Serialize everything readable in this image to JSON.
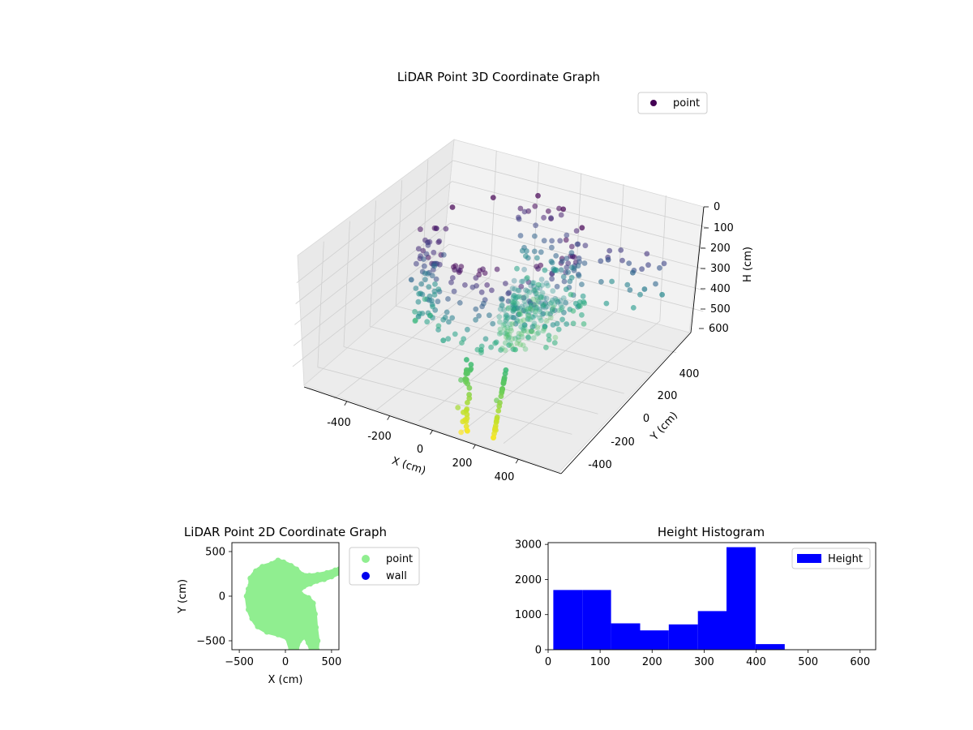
{
  "figure": {
    "charts_3d_title": "LiDAR Point 3D Coordinate Graph",
    "charts_2d_title": "LiDAR Point 2D Coordinate Graph",
    "histogram_title": "Height Histogram"
  },
  "chart_data": [
    {
      "type": "scatter",
      "projection": "3d",
      "title": "LiDAR Point 3D Coordinate Graph",
      "xlabel": "X (cm)",
      "ylabel": "Y (cm)",
      "zlabel": "H (cm)",
      "xlim": [
        -600,
        600
      ],
      "ylim": [
        -600,
        600
      ],
      "zlim": [
        600,
        0
      ],
      "z_inverted": true,
      "xticks": [
        "-400",
        "-200",
        "0",
        "200",
        "400"
      ],
      "yticks": [
        "-400",
        "-200",
        "0",
        "200",
        "400"
      ],
      "zticks": [
        "0",
        "100",
        "200",
        "300",
        "400",
        "500",
        "600"
      ],
      "legend": {
        "entries": [
          "point"
        ],
        "placement": "upper-right"
      },
      "colormap": "viridis",
      "grid": true,
      "series": [
        {
          "name": "point",
          "color_by": "height",
          "structure": "curved wall ring of points (~300 cm radius) spanning heights 0–400 cm, sparse trails descending to ~600 cm",
          "sample_points": [
            {
              "x": -300,
              "y": 100,
              "h": 0
            },
            {
              "x": -200,
              "y": 250,
              "h": 0
            },
            {
              "x": -50,
              "y": 350,
              "h": 0
            },
            {
              "x": 100,
              "y": 300,
              "h": 0
            },
            {
              "x": 250,
              "y": 200,
              "h": 0
            },
            {
              "x": 300,
              "y": 50,
              "h": 50
            },
            {
              "x": -320,
              "y": -50,
              "h": 100
            },
            {
              "x": -300,
              "y": -200,
              "h": 200
            },
            {
              "x": -200,
              "y": -300,
              "h": 300
            },
            {
              "x": -50,
              "y": -350,
              "h": 350
            },
            {
              "x": 100,
              "y": -300,
              "h": 380
            },
            {
              "x": 200,
              "y": -200,
              "h": 400
            },
            {
              "x": 350,
              "y": 250,
              "h": 150
            },
            {
              "x": 450,
              "y": 280,
              "h": 200
            },
            {
              "x": 520,
              "y": 260,
              "h": 250
            },
            {
              "x": 580,
              "y": 300,
              "h": 280
            },
            {
              "x": 100,
              "y": -450,
              "h": 450
            },
            {
              "x": 150,
              "y": -550,
              "h": 520
            },
            {
              "x": 200,
              "y": -600,
              "h": 600
            },
            {
              "x": 300,
              "y": -500,
              "h": 470
            },
            {
              "x": 350,
              "y": -580,
              "h": 560
            }
          ]
        }
      ]
    },
    {
      "type": "scatter",
      "title": "LiDAR Point 2D Coordinate Graph",
      "xlabel": "X (cm)",
      "ylabel": "Y (cm)",
      "xlim": [
        -580,
        580
      ],
      "ylim": [
        -600,
        600
      ],
      "xticks": [
        "−500",
        "0",
        "500"
      ],
      "yticks": [
        "500",
        "0",
        "−500"
      ],
      "xtick_values": [
        -500,
        0,
        500
      ],
      "ytick_values": [
        500,
        0,
        -500
      ],
      "legend": {
        "entries": [
          "point",
          "wall"
        ],
        "placement": "outside-right"
      },
      "series": [
        {
          "name": "point",
          "color": "#90ee90",
          "outline": [
            [
              -380,
              120
            ],
            [
              -380,
              200
            ],
            [
              -320,
              280
            ],
            [
              -250,
              330
            ],
            [
              -150,
              360
            ],
            [
              -80,
              400
            ],
            [
              -20,
              380
            ],
            [
              60,
              340
            ],
            [
              120,
              300
            ],
            [
              180,
              240
            ],
            [
              260,
              230
            ],
            [
              350,
              240
            ],
            [
              450,
              260
            ],
            [
              540,
              290
            ],
            [
              580,
              300
            ],
            [
              580,
              260
            ],
            [
              500,
              220
            ],
            [
              420,
              190
            ],
            [
              340,
              170
            ],
            [
              270,
              140
            ],
            [
              200,
              110
            ],
            [
              150,
              60
            ],
            [
              170,
              20
            ],
            [
              250,
              -20
            ],
            [
              300,
              -80
            ],
            [
              320,
              -200
            ],
            [
              330,
              -350
            ],
            [
              350,
              -500
            ],
            [
              340,
              -600
            ],
            [
              280,
              -600
            ],
            [
              250,
              -520
            ],
            [
              210,
              -450
            ],
            [
              150,
              -500
            ],
            [
              120,
              -600
            ],
            [
              60,
              -600
            ],
            [
              20,
              -470
            ],
            [
              -80,
              -430
            ],
            [
              -200,
              -400
            ],
            [
              -300,
              -340
            ],
            [
              -360,
              -250
            ],
            [
              -400,
              -150
            ],
            [
              -420,
              0
            ],
            [
              -400,
              80
            ]
          ]
        },
        {
          "name": "wall",
          "color": "#0000ee",
          "points": []
        }
      ]
    },
    {
      "type": "bar",
      "subtype": "histogram",
      "title": "Height Histogram",
      "xlim": [
        0,
        630
      ],
      "ylim": [
        0,
        3050
      ],
      "xticks": [
        "0",
        "100",
        "200",
        "300",
        "400",
        "500",
        "600"
      ],
      "xtick_values": [
        0,
        100,
        200,
        300,
        400,
        500,
        600
      ],
      "yticks": [
        "0",
        "1000",
        "2000",
        "3000"
      ],
      "ytick_values": [
        0,
        1000,
        2000,
        3000
      ],
      "legend": {
        "entries": [
          "Height"
        ],
        "placement": "upper-right"
      },
      "series": [
        {
          "name": "Height",
          "color": "#0000ff",
          "bins": [
            {
              "x0": 10,
              "x1": 66,
              "count": 1700
            },
            {
              "x0": 66,
              "x1": 121,
              "count": 1700
            },
            {
              "x0": 121,
              "x1": 177,
              "count": 750
            },
            {
              "x0": 177,
              "x1": 232,
              "count": 550
            },
            {
              "x0": 232,
              "x1": 288,
              "count": 720
            },
            {
              "x0": 288,
              "x1": 343,
              "count": 1100
            },
            {
              "x0": 343,
              "x1": 399,
              "count": 2920
            },
            {
              "x0": 399,
              "x1": 455,
              "count": 160
            }
          ]
        }
      ]
    }
  ]
}
